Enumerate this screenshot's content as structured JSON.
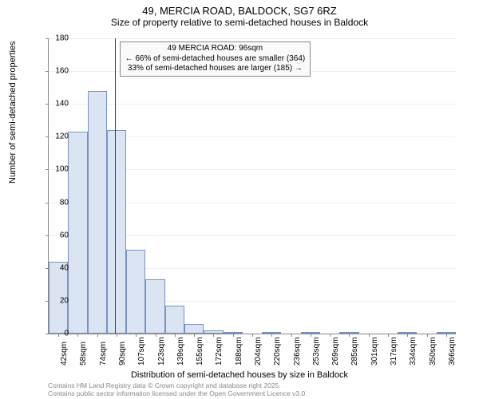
{
  "title": "49, MERCIA ROAD, BALDOCK, SG7 6RZ",
  "subtitle": "Size of property relative to semi-detached houses in Baldock",
  "y_label": "Number of semi-detached properties",
  "x_label": "Distribution of semi-detached houses by size in Baldock",
  "footer_line1": "Contains HM Land Registry data © Crown copyright and database right 2025.",
  "footer_line2": "Contains public sector information licensed under the Open Government Licence v3.0.",
  "chart": {
    "type": "histogram",
    "ylim": [
      0,
      180
    ],
    "ytick_step": 20,
    "bar_fill": "#dbe4f2",
    "bar_stroke": "#7a93bd",
    "grid_color": "#eeeeee",
    "axis_color": "#888888",
    "background_color": "#ffffff",
    "marker": {
      "value_label": "49 MERCIA ROAD: 96sqm",
      "line_color": "#d00000",
      "line1": "← 66% of semi-detached houses are smaller (364)",
      "line2": "33% of semi-detached houses are larger (185) →",
      "position_bin_index": 3.4
    },
    "x_labels": [
      "42sqm",
      "58sqm",
      "74sqm",
      "90sqm",
      "107sqm",
      "123sqm",
      "139sqm",
      "155sqm",
      "172sqm",
      "188sqm",
      "204sqm",
      "220sqm",
      "236sqm",
      "253sqm",
      "269sqm",
      "285sqm",
      "301sqm",
      "317sqm",
      "334sqm",
      "350sqm",
      "366sqm"
    ],
    "values": [
      44,
      123,
      148,
      124,
      51,
      33,
      17,
      6,
      2,
      1,
      0,
      1,
      0,
      1,
      0,
      1,
      0,
      0,
      1,
      0,
      1
    ],
    "title_fontsize": 13,
    "subtitle_fontsize": 12,
    "label_fontsize": 11,
    "tick_fontsize": 10,
    "footer_fontsize": 8.5,
    "footer_color": "#888888"
  }
}
